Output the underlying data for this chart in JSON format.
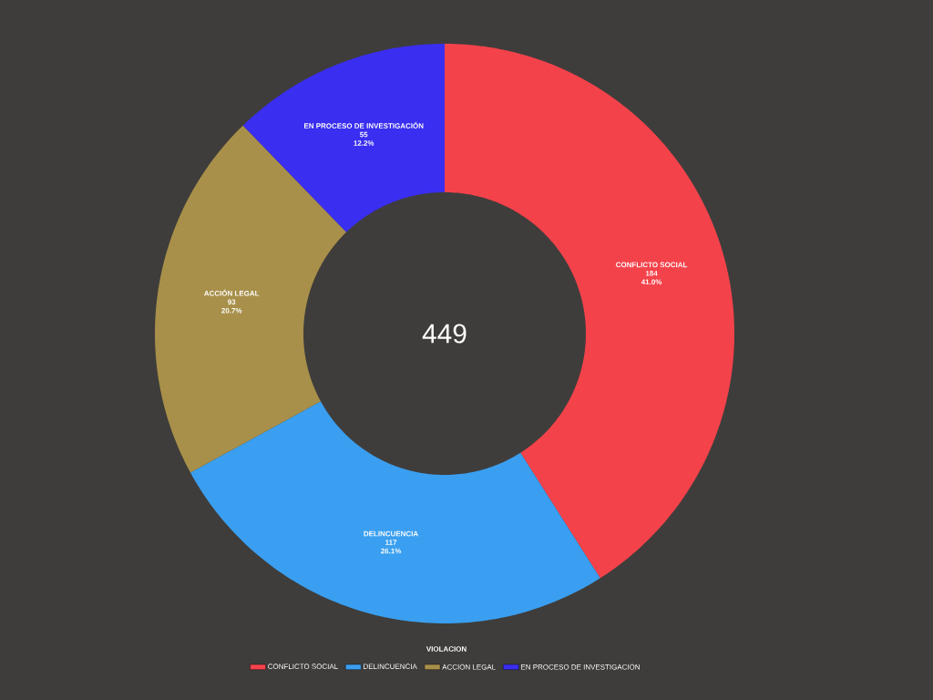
{
  "chart_data": {
    "type": "donut",
    "categories": [
      "CONFLICTO SOCIAL",
      "DELINCUENCIA",
      "ACCIÓN LEGAL",
      "EN PROCESO DE INVESTIGACIÓN"
    ],
    "values": [
      184,
      117,
      93,
      55
    ],
    "colors": [
      "#f4424b",
      "#3a9ff0",
      "#a8904a",
      "#3a2ef0"
    ],
    "value_labels": [
      "184",
      "117",
      "93",
      "55"
    ],
    "legend": "bottom",
    "legend_title": "VIOLACION",
    "annotations": [
      "449",
      {
        "text": "41.0%",
        "x": "CONFLICTO SOCIAL"
      },
      {
        "text": "26.1%",
        "x": "DELINCUENCIA"
      },
      {
        "text": "20.7%",
        "x": "ACCIÓN LEGAL"
      },
      {
        "text": "12.2%",
        "x": "EN PROCESO DE INVESTIGACIÓN"
      }
    ]
  }
}
